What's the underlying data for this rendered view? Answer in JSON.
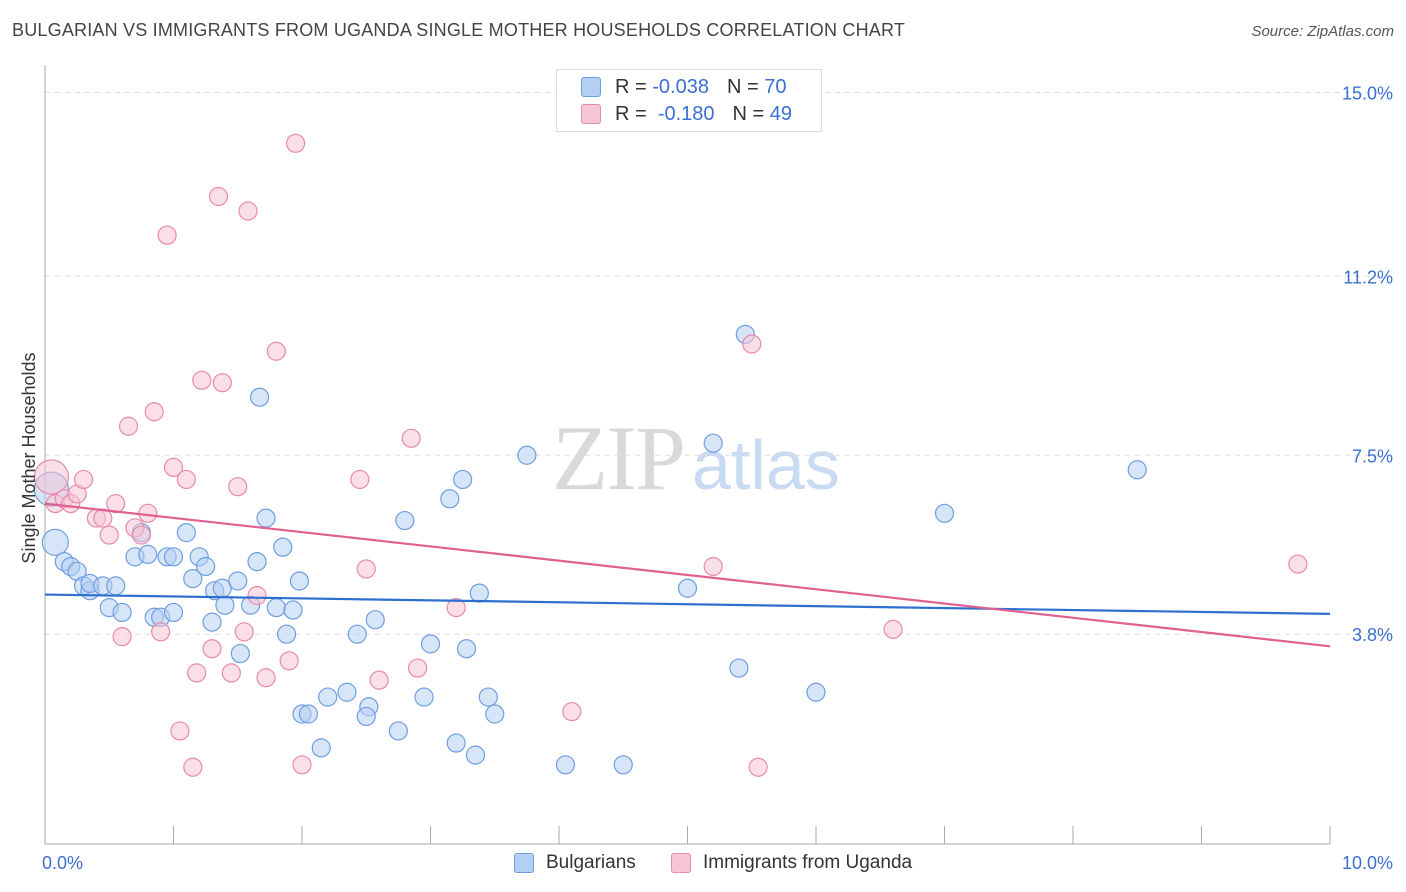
{
  "title": "BULGARIAN VS IMMIGRANTS FROM UGANDA SINGLE MOTHER HOUSEHOLDS CORRELATION CHART",
  "source": "Source: ZipAtlas.com",
  "watermark": {
    "zip": "ZIP",
    "atlas": "atlas"
  },
  "legend": {
    "r_label": "R =",
    "n_label": "N =",
    "series": [
      {
        "name": "Bulgarians",
        "r": "-0.038",
        "n": "70"
      },
      {
        "name": "Immigrants from Uganda",
        "r": "-0.180",
        "n": "49"
      }
    ]
  },
  "colors": {
    "blue_fill": "#b5cff2",
    "blue_stroke": "#6f9ee0",
    "blue_line": "#2d6fcf",
    "pink_fill": "#f6c5d6",
    "pink_stroke": "#e88aab",
    "pink_line": "#e0608f",
    "tick_label": "#3b6fd1",
    "grid": "#dddddd",
    "axis": "#aaaaaa"
  },
  "chart_data": {
    "type": "scatter",
    "title": "BULGARIAN VS IMMIGRANTS FROM UGANDA SINGLE MOTHER HOUSEHOLDS CORRELATION CHART",
    "xlabel": "",
    "ylabel": "Single Mother Households",
    "xlim": [
      0,
      10
    ],
    "ylim": [
      0,
      15.3
    ],
    "x_tick_labels": [
      {
        "value": 0,
        "label": "0.0%"
      },
      {
        "value": 10,
        "label": "10.0%"
      }
    ],
    "y_ticks": [
      {
        "value": 3.8,
        "label": "3.8%"
      },
      {
        "value": 7.5,
        "label": "7.5%"
      },
      {
        "value": 11.2,
        "label": "11.2%"
      },
      {
        "value": 15.0,
        "label": "15.0%"
      }
    ],
    "grid": true,
    "legend_position": "top-center",
    "series": [
      {
        "name": "Bulgarians",
        "color": "#6f9ee0",
        "trend": [
          [
            0,
            4.62
          ],
          [
            10,
            4.22
          ]
        ],
        "points": [
          [
            0.05,
            6.8
          ],
          [
            0.08,
            5.7
          ],
          [
            0.15,
            5.3
          ],
          [
            0.2,
            5.2
          ],
          [
            0.25,
            5.1
          ],
          [
            0.3,
            4.8
          ],
          [
            0.35,
            4.7
          ],
          [
            0.35,
            4.85
          ],
          [
            0.45,
            4.8
          ],
          [
            0.55,
            4.8
          ],
          [
            0.5,
            4.35
          ],
          [
            0.6,
            4.25
          ],
          [
            0.7,
            5.4
          ],
          [
            0.75,
            5.9
          ],
          [
            0.8,
            5.45
          ],
          [
            0.85,
            4.15
          ],
          [
            0.9,
            4.15
          ],
          [
            0.95,
            5.4
          ],
          [
            1.0,
            4.25
          ],
          [
            1.1,
            5.9
          ],
          [
            1.15,
            4.95
          ],
          [
            1.2,
            5.4
          ],
          [
            1.25,
            5.2
          ],
          [
            1.3,
            4.05
          ],
          [
            1.32,
            4.7
          ],
          [
            1.38,
            4.75
          ],
          [
            1.4,
            4.4
          ],
          [
            1.5,
            4.9
          ],
          [
            1.52,
            3.4
          ],
          [
            1.6,
            4.4
          ],
          [
            1.65,
            5.3
          ],
          [
            1.67,
            8.7
          ],
          [
            1.72,
            6.2
          ],
          [
            1.8,
            4.35
          ],
          [
            1.85,
            5.6
          ],
          [
            1.88,
            3.8
          ],
          [
            1.93,
            4.3
          ],
          [
            1.98,
            4.9
          ],
          [
            2.0,
            2.15
          ],
          [
            2.05,
            2.15
          ],
          [
            2.15,
            1.45
          ],
          [
            2.2,
            2.5
          ],
          [
            2.35,
            2.6
          ],
          [
            2.43,
            3.8
          ],
          [
            2.52,
            2.3
          ],
          [
            2.57,
            4.1
          ],
          [
            2.75,
            1.8
          ],
          [
            2.8,
            6.15
          ],
          [
            2.95,
            2.5
          ],
          [
            3.0,
            3.6
          ],
          [
            3.15,
            6.6
          ],
          [
            3.2,
            1.55
          ],
          [
            3.25,
            7.0
          ],
          [
            3.28,
            3.5
          ],
          [
            3.35,
            1.3
          ],
          [
            3.38,
            4.65
          ],
          [
            3.45,
            2.5
          ],
          [
            3.5,
            2.15
          ],
          [
            3.75,
            7.5
          ],
          [
            4.05,
            1.1
          ],
          [
            4.5,
            1.1
          ],
          [
            5.0,
            4.75
          ],
          [
            5.2,
            7.75
          ],
          [
            5.4,
            3.1
          ],
          [
            5.45,
            10.0
          ],
          [
            6.0,
            2.6
          ],
          [
            7.0,
            6.3
          ],
          [
            8.5,
            7.2
          ],
          [
            1.0,
            5.4
          ],
          [
            2.5,
            2.1
          ]
        ]
      },
      {
        "name": "Immigrants from Uganda",
        "color": "#e88aab",
        "trend": [
          [
            0,
            6.5
          ],
          [
            10,
            3.55
          ]
        ],
        "points": [
          [
            0.05,
            7.05
          ],
          [
            0.08,
            6.5
          ],
          [
            0.15,
            6.6
          ],
          [
            0.2,
            6.5
          ],
          [
            0.25,
            6.7
          ],
          [
            0.3,
            7.0
          ],
          [
            0.4,
            6.2
          ],
          [
            0.45,
            6.2
          ],
          [
            0.5,
            5.85
          ],
          [
            0.55,
            6.5
          ],
          [
            0.6,
            3.75
          ],
          [
            0.65,
            8.1
          ],
          [
            0.7,
            6.0
          ],
          [
            0.75,
            5.85
          ],
          [
            0.8,
            6.3
          ],
          [
            0.85,
            8.4
          ],
          [
            0.9,
            3.85
          ],
          [
            0.95,
            12.05
          ],
          [
            1.0,
            7.25
          ],
          [
            1.05,
            1.8
          ],
          [
            1.1,
            7.0
          ],
          [
            1.15,
            1.05
          ],
          [
            1.18,
            3.0
          ],
          [
            1.22,
            9.05
          ],
          [
            1.3,
            3.5
          ],
          [
            1.35,
            12.85
          ],
          [
            1.38,
            9.0
          ],
          [
            1.45,
            3.0
          ],
          [
            1.5,
            6.85
          ],
          [
            1.55,
            3.85
          ],
          [
            1.58,
            12.55
          ],
          [
            1.65,
            4.6
          ],
          [
            1.72,
            2.9
          ],
          [
            1.8,
            9.65
          ],
          [
            1.9,
            3.25
          ],
          [
            1.95,
            13.95
          ],
          [
            2.0,
            1.1
          ],
          [
            2.45,
            7.0
          ],
          [
            2.5,
            5.15
          ],
          [
            2.6,
            2.85
          ],
          [
            2.85,
            7.85
          ],
          [
            2.9,
            3.1
          ],
          [
            3.2,
            4.35
          ],
          [
            4.1,
            2.2
          ],
          [
            5.2,
            5.2
          ],
          [
            5.5,
            9.8
          ],
          [
            5.55,
            1.05
          ],
          [
            6.6,
            3.9
          ],
          [
            9.75,
            5.25
          ]
        ]
      }
    ]
  }
}
